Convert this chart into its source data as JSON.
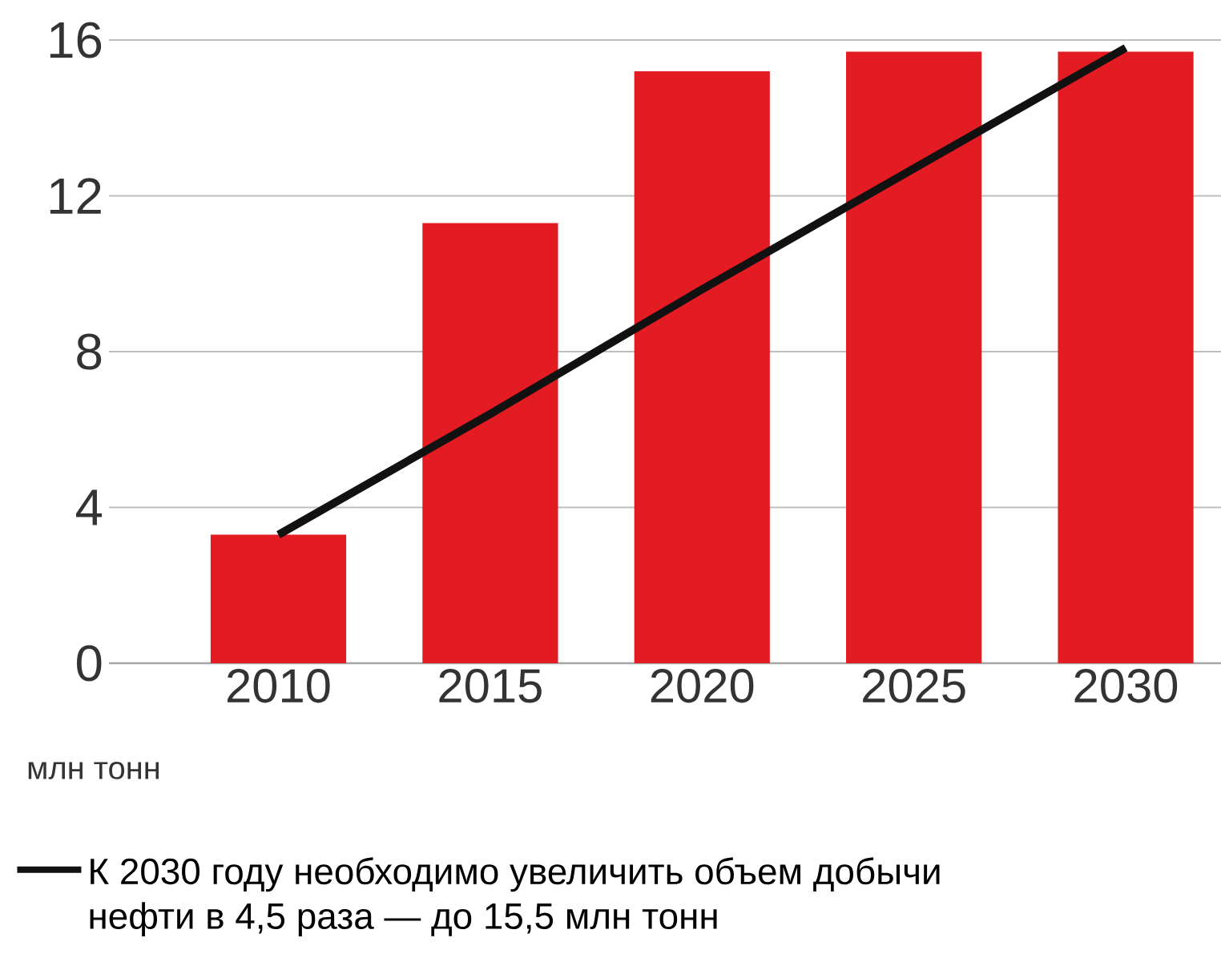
{
  "chart_data": {
    "type": "bar",
    "ylabel": "млн тонн",
    "categories": [
      "2010",
      "2015",
      "2020",
      "2025",
      "2030"
    ],
    "series": [
      {
        "color": "#e31b23",
        "values": [
          3.3,
          11.3,
          15.2,
          15.7,
          15.7
        ]
      },
      {
        "type": "line",
        "name": "К 2030 году необходимо увеличить объем добычи нефти в 4,5 раза — до 15,5 млн тонн",
        "color": "#111111",
        "values": [
          3.3,
          6.4,
          9.6,
          12.7,
          15.8
        ]
      }
    ],
    "ylim": [
      0,
      16
    ],
    "yticks": [
      0,
      4,
      8,
      12,
      16
    ],
    "grid": "y",
    "legend": "bottom"
  }
}
